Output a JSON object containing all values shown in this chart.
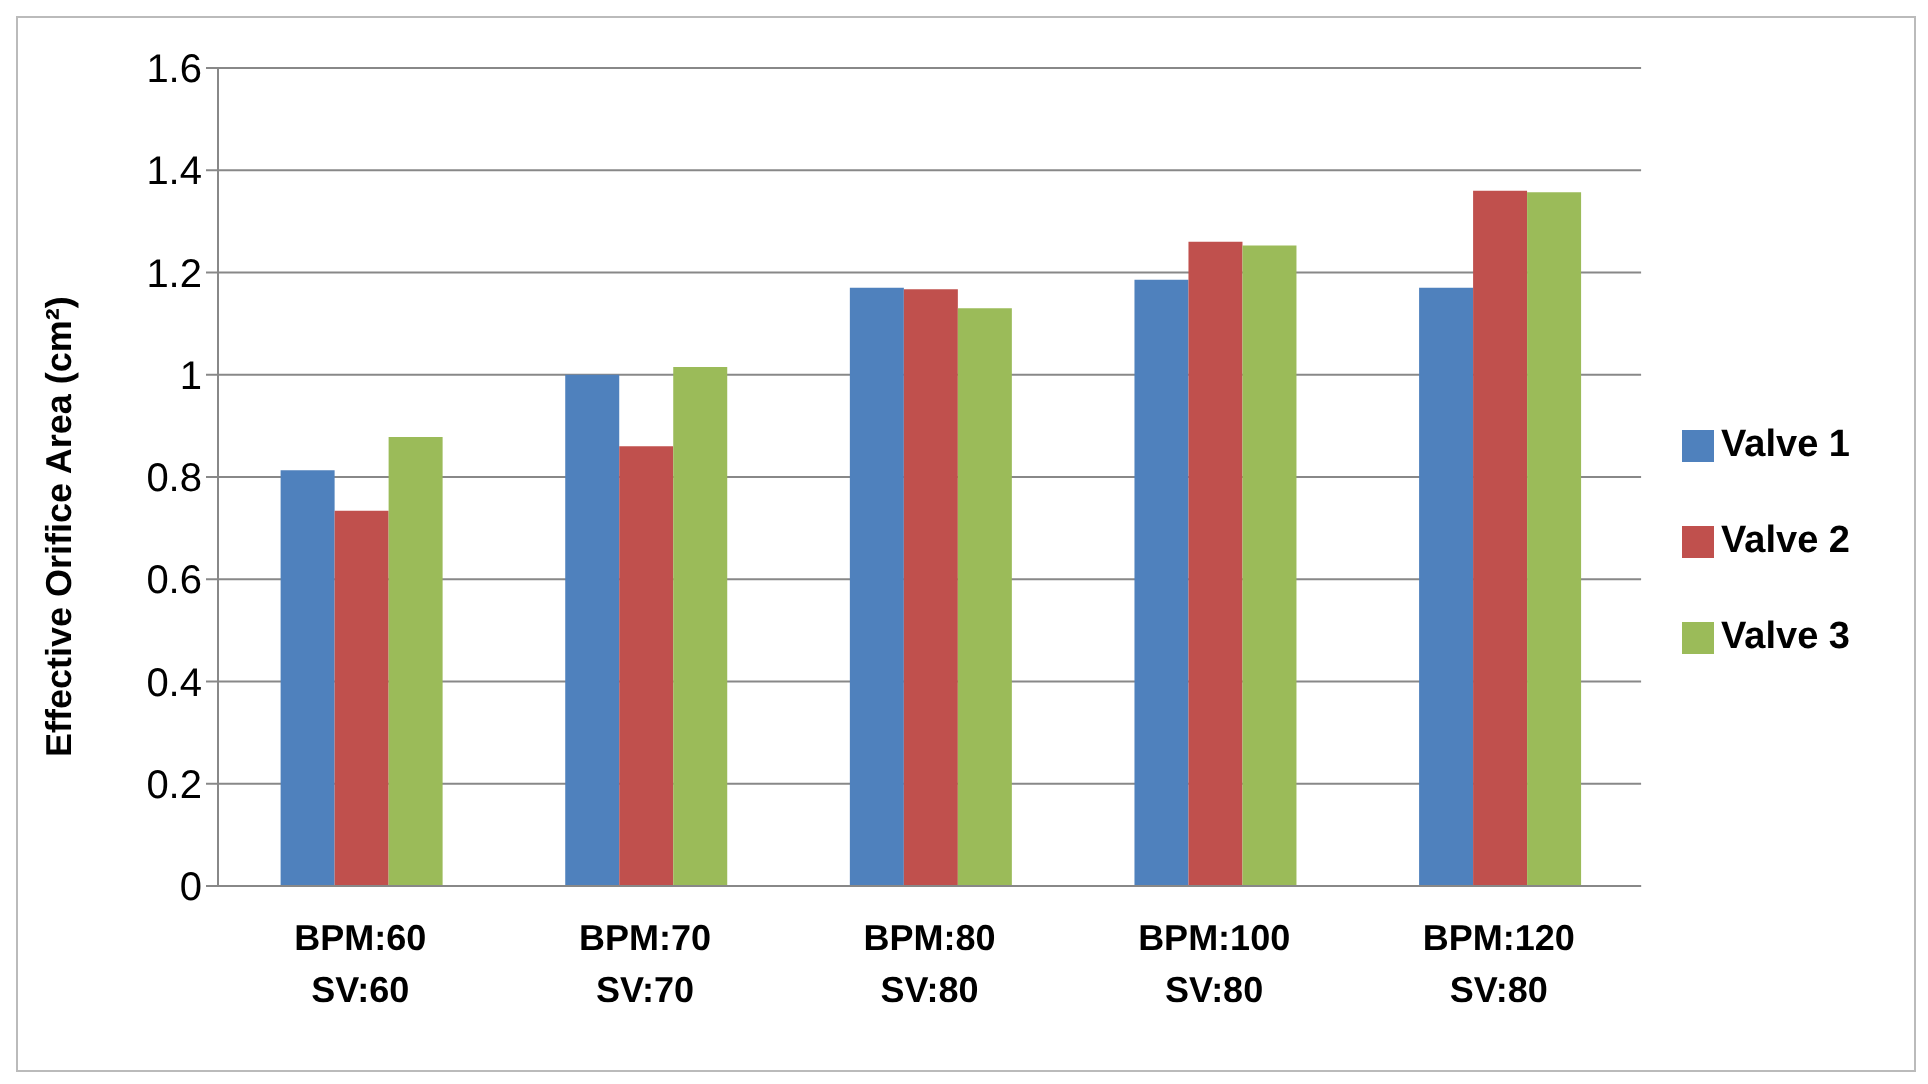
{
  "chart_data": {
    "type": "bar",
    "ylabel": "Effective Orifice Area (cm²)",
    "categories": [
      "BPM:60\nSV:60",
      "BPM:70\nSV:70",
      "BPM:80\nSV:80",
      "BPM:100\nSV:80",
      "BPM:120\nSV:80"
    ],
    "series": [
      {
        "name": "Valve 1",
        "color": "#4f81bd",
        "values": [
          0.813,
          1.0,
          1.17,
          1.186,
          1.17
        ]
      },
      {
        "name": "Valve 2",
        "color": "#c0504d",
        "values": [
          0.734,
          0.86,
          1.167,
          1.26,
          1.36
        ]
      },
      {
        "name": "Valve 3",
        "color": "#9bbb59",
        "values": [
          0.878,
          1.015,
          1.13,
          1.253,
          1.357
        ]
      }
    ],
    "ylim": [
      0,
      1.6
    ],
    "yticks": [
      0,
      0.2,
      0.4,
      0.6,
      0.8,
      1,
      1.2,
      1.4,
      1.6
    ],
    "grid": "y",
    "legend": "right"
  }
}
